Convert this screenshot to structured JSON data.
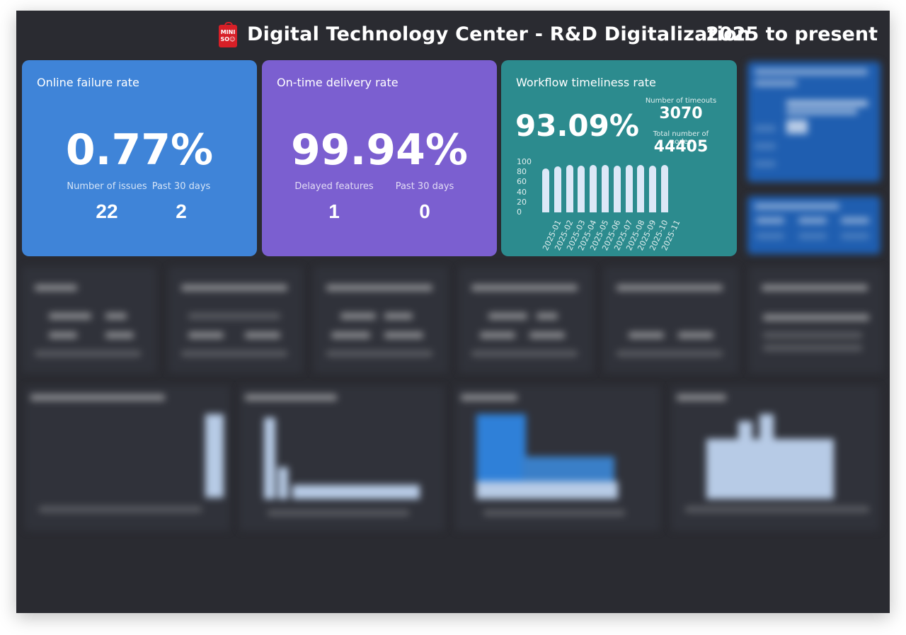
{
  "header": {
    "logo_text": "MINISO",
    "title": "Digital Technology Center - R&D Digitalization",
    "period": "2025 to present"
  },
  "cards": {
    "failure": {
      "title": "Online failure rate",
      "value": "0.77%",
      "label_issues": "Number of issues",
      "label_past": "Past 30 days",
      "issues": "22",
      "past": "2"
    },
    "delivery": {
      "title": "On-time delivery rate",
      "value": "99.94%",
      "label_delayed": "Delayed features",
      "label_past": "Past 30 days",
      "delayed": "1",
      "past": "0"
    },
    "workflow": {
      "title": "Workflow timeliness rate",
      "value": "93.09%",
      "label_timeouts": "Number of timeouts",
      "timeouts": "3070",
      "label_nodes": "Total number of nodes",
      "nodes": "44405"
    }
  },
  "chart_data": {
    "type": "bar",
    "categories": [
      "2025-01",
      "2025-02",
      "2025-03",
      "2025-04",
      "2025-05",
      "2025-06",
      "2025-07",
      "2025-08",
      "2025-09",
      "2025-10",
      "2025-11"
    ],
    "values": [
      88,
      92,
      94,
      93,
      95,
      94,
      93,
      95,
      94,
      93,
      94
    ],
    "ylim": [
      0,
      100
    ],
    "yticks": [
      "100",
      "80",
      "60",
      "40",
      "20",
      "0"
    ],
    "title": "",
    "xlabel": "",
    "ylabel": ""
  }
}
